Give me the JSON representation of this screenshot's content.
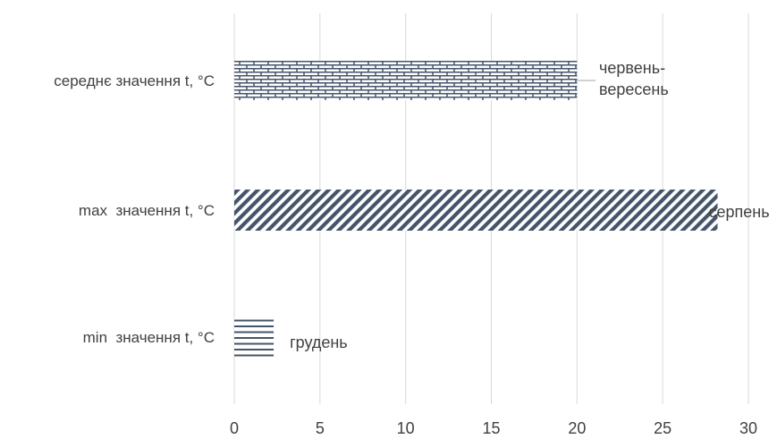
{
  "chart_data": {
    "type": "bar",
    "orientation": "horizontal",
    "categories": [
      "середнє значення t, °C",
      "max  значення t, °C",
      "min  значення t, °C"
    ],
    "values": [
      20,
      28.2,
      2.3
    ],
    "data_labels": [
      "червень-\nвересень",
      "серпень",
      "грудень"
    ],
    "xlim": [
      0,
      30
    ],
    "xticks": [
      0,
      5,
      10,
      15,
      20,
      25,
      30
    ],
    "grid": "vertical",
    "legend": "none",
    "colors": {
      "bar": "#44546a",
      "grid": "#d9d9d9",
      "text": "#404040",
      "leader": "#a6a6a6"
    },
    "patterns": [
      "brick",
      "diagonal-stripes",
      "horizontal-lines"
    ]
  }
}
